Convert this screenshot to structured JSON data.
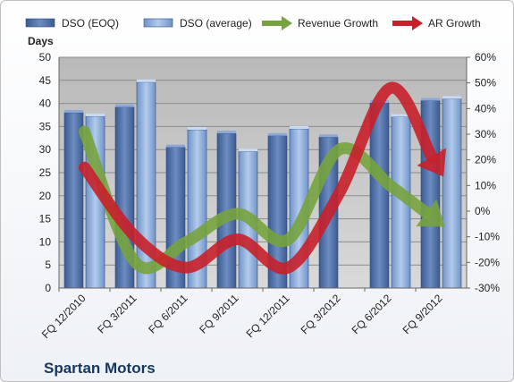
{
  "chart_data": {
    "type": "bar",
    "title": "",
    "company": "Spartan Motors",
    "y_left_label": "Days",
    "y_left_lim": [
      0,
      50
    ],
    "y_left_ticks": [
      "0",
      "5",
      "10",
      "15",
      "20",
      "25",
      "30",
      "35",
      "40",
      "45",
      "50"
    ],
    "y_right_lim": [
      -0.3,
      0.6
    ],
    "y_right_ticks": [
      "-30%",
      "-20%",
      "-10%",
      "0%",
      "10%",
      "20%",
      "30%",
      "40%",
      "50%",
      "60%"
    ],
    "grid": true,
    "legend_position": "top",
    "categories": [
      "FQ 12/2010",
      "FQ 3/2011",
      "FQ 6/2011",
      "FQ 9/2011",
      "FQ 12/2011",
      "FQ 3/2012",
      "FQ 6/2012",
      "FQ 9/2012"
    ],
    "series": [
      {
        "name": "DSO (EOQ)",
        "kind": "bar",
        "axis": "left",
        "color": "#4f6fa7",
        "values": [
          38,
          39.2,
          30.5,
          33.5,
          33,
          32.7,
          40.1,
          40.6
        ]
      },
      {
        "name": "DSO (average)",
        "kind": "bar",
        "axis": "left",
        "color": "#8fb0dc",
        "values": [
          37.2,
          44.6,
          34.3,
          29.6,
          34.5,
          null,
          37.1,
          41
        ]
      },
      {
        "name": "Revenue Growth",
        "kind": "arrow",
        "axis": "right",
        "color": "#77a33e",
        "values": [
          0.31,
          -0.2,
          -0.12,
          -0.01,
          -0.11,
          0.24,
          0.1,
          -0.05
        ]
      },
      {
        "name": "AR Growth",
        "kind": "arrow",
        "axis": "right",
        "color": "#c8202a",
        "values": [
          0.17,
          -0.1,
          -0.22,
          -0.11,
          -0.22,
          0.07,
          0.48,
          0.15
        ]
      }
    ]
  }
}
